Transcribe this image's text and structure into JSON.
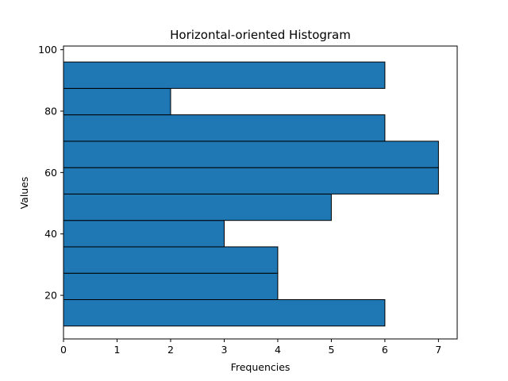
{
  "chart_data": {
    "type": "bar",
    "orientation": "horizontal",
    "title": "Horizontal-oriented Histogram",
    "xlabel": "Frequencies",
    "ylabel": "Values",
    "xlim": [
      0,
      7.35
    ],
    "ylim": [
      5.8,
      101.2
    ],
    "xticks": [
      0,
      1,
      2,
      3,
      4,
      5,
      6,
      7
    ],
    "yticks": [
      20,
      40,
      60,
      80,
      100
    ],
    "bins": [
      {
        "start": 10.0,
        "end": 18.6,
        "frequency": 6
      },
      {
        "start": 18.6,
        "end": 27.2,
        "frequency": 4
      },
      {
        "start": 27.2,
        "end": 35.8,
        "frequency": 4
      },
      {
        "start": 35.8,
        "end": 44.4,
        "frequency": 3
      },
      {
        "start": 44.4,
        "end": 53.0,
        "frequency": 5
      },
      {
        "start": 53.0,
        "end": 61.6,
        "frequency": 7
      },
      {
        "start": 61.6,
        "end": 70.2,
        "frequency": 7
      },
      {
        "start": 70.2,
        "end": 78.8,
        "frequency": 6
      },
      {
        "start": 78.8,
        "end": 87.4,
        "frequency": 2
      },
      {
        "start": 87.4,
        "end": 96.0,
        "frequency": 6
      }
    ],
    "bar_color": "#1f77b4",
    "edge_color": "#000000"
  }
}
